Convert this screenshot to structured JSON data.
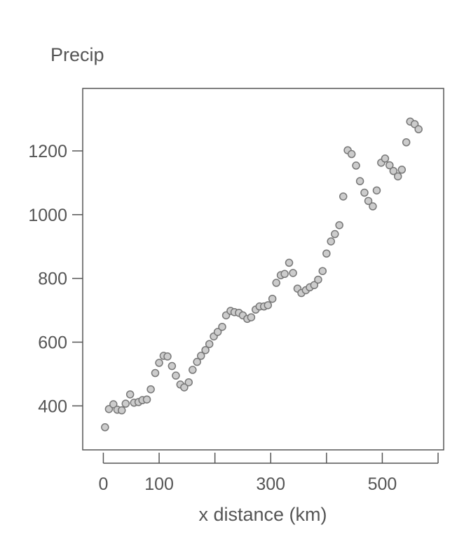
{
  "chart_data": {
    "type": "scatter",
    "title": "Precip",
    "xlabel": "x distance (km)",
    "ylabel": "",
    "xlim": [
      -37,
      610
    ],
    "ylim": [
      262,
      1396
    ],
    "x_ticks": [
      0,
      100,
      200,
      300,
      400,
      500,
      600
    ],
    "x_tick_labels": [
      "0",
      "100",
      "",
      "300",
      "",
      "500",
      ""
    ],
    "y_ticks": [
      400,
      600,
      800,
      1000,
      1200
    ],
    "y_tick_labels": [
      "400",
      "600",
      "800",
      "1000",
      "1200"
    ],
    "grid": false,
    "legend": "none",
    "colors": {
      "point_fill": "#cccccc",
      "point_stroke": "#777777",
      "axis": "#555555",
      "text": "#555555"
    },
    "points": [
      {
        "x": 3,
        "y": 333
      },
      {
        "x": 10,
        "y": 390
      },
      {
        "x": 18,
        "y": 405
      },
      {
        "x": 25,
        "y": 388
      },
      {
        "x": 33,
        "y": 386
      },
      {
        "x": 40,
        "y": 407
      },
      {
        "x": 48,
        "y": 436
      },
      {
        "x": 55,
        "y": 410
      },
      {
        "x": 63,
        "y": 412
      },
      {
        "x": 70,
        "y": 418
      },
      {
        "x": 78,
        "y": 420
      },
      {
        "x": 85,
        "y": 452
      },
      {
        "x": 93,
        "y": 503
      },
      {
        "x": 100,
        "y": 535
      },
      {
        "x": 108,
        "y": 557
      },
      {
        "x": 115,
        "y": 555
      },
      {
        "x": 123,
        "y": 525
      },
      {
        "x": 130,
        "y": 495
      },
      {
        "x": 138,
        "y": 467
      },
      {
        "x": 145,
        "y": 458
      },
      {
        "x": 153,
        "y": 474
      },
      {
        "x": 160,
        "y": 513
      },
      {
        "x": 168,
        "y": 538
      },
      {
        "x": 175,
        "y": 557
      },
      {
        "x": 183,
        "y": 575
      },
      {
        "x": 190,
        "y": 594
      },
      {
        "x": 198,
        "y": 618
      },
      {
        "x": 205,
        "y": 632
      },
      {
        "x": 213,
        "y": 648
      },
      {
        "x": 220,
        "y": 684
      },
      {
        "x": 228,
        "y": 698
      },
      {
        "x": 235,
        "y": 694
      },
      {
        "x": 243,
        "y": 692
      },
      {
        "x": 250,
        "y": 684
      },
      {
        "x": 258,
        "y": 673
      },
      {
        "x": 265,
        "y": 678
      },
      {
        "x": 273,
        "y": 702
      },
      {
        "x": 280,
        "y": 712
      },
      {
        "x": 288,
        "y": 712
      },
      {
        "x": 295,
        "y": 716
      },
      {
        "x": 303,
        "y": 736
      },
      {
        "x": 310,
        "y": 786
      },
      {
        "x": 318,
        "y": 810
      },
      {
        "x": 325,
        "y": 814
      },
      {
        "x": 333,
        "y": 849
      },
      {
        "x": 340,
        "y": 817
      },
      {
        "x": 348,
        "y": 768
      },
      {
        "x": 355,
        "y": 754
      },
      {
        "x": 363,
        "y": 763
      },
      {
        "x": 370,
        "y": 772
      },
      {
        "x": 378,
        "y": 779
      },
      {
        "x": 385,
        "y": 796
      },
      {
        "x": 393,
        "y": 823
      },
      {
        "x": 400,
        "y": 878
      },
      {
        "x": 408,
        "y": 916
      },
      {
        "x": 415,
        "y": 939
      },
      {
        "x": 423,
        "y": 967
      },
      {
        "x": 430,
        "y": 1057
      },
      {
        "x": 438,
        "y": 1202
      },
      {
        "x": 445,
        "y": 1190
      },
      {
        "x": 453,
        "y": 1154
      },
      {
        "x": 460,
        "y": 1105
      },
      {
        "x": 468,
        "y": 1069
      },
      {
        "x": 475,
        "y": 1043
      },
      {
        "x": 483,
        "y": 1026
      },
      {
        "x": 490,
        "y": 1076
      },
      {
        "x": 498,
        "y": 1163
      },
      {
        "x": 505,
        "y": 1176
      },
      {
        "x": 513,
        "y": 1155
      },
      {
        "x": 520,
        "y": 1137
      },
      {
        "x": 528,
        "y": 1120
      },
      {
        "x": 535,
        "y": 1141
      },
      {
        "x": 543,
        "y": 1227
      },
      {
        "x": 550,
        "y": 1292
      },
      {
        "x": 558,
        "y": 1284
      },
      {
        "x": 565,
        "y": 1268
      }
    ]
  }
}
